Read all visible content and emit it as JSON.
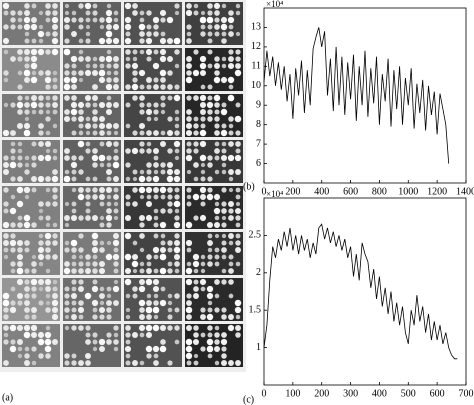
{
  "panel_label": "(a)",
  "chart_data": [
    {
      "type": "line",
      "label": "(b)",
      "y_multiplier": "×10⁴",
      "x": [
        0,
        20,
        40,
        60,
        80,
        100,
        120,
        140,
        160,
        180,
        200,
        220,
        240,
        260,
        280,
        300,
        320,
        340,
        360,
        380,
        400,
        420,
        440,
        460,
        480,
        500,
        520,
        540,
        560,
        580,
        600,
        620,
        640,
        660,
        680,
        700,
        720,
        740,
        760,
        780,
        800,
        820,
        840,
        860,
        880,
        900,
        920,
        940,
        960,
        980,
        1000,
        1020,
        1040,
        1060,
        1080,
        1100,
        1120,
        1140,
        1160,
        1180,
        1200,
        1220,
        1240,
        1260,
        1280
      ],
      "series": [
        {
          "color": "#000000",
          "values": [
            10.2,
            11.8,
            10.5,
            11.5,
            10.0,
            11.2,
            9.8,
            11.0,
            9.2,
            10.6,
            8.3,
            10.9,
            9.5,
            11.3,
            8.6,
            10.8,
            9.0,
            11.9,
            12.5,
            13.0,
            12.0,
            12.8,
            9.5,
            11.4,
            8.7,
            12.0,
            9.0,
            11.5,
            8.5,
            11.2,
            9.3,
            11.6,
            8.2,
            11.0,
            9.0,
            11.8,
            8.4,
            10.9,
            9.1,
            11.5,
            8.0,
            10.6,
            9.2,
            11.4,
            7.9,
            10.8,
            8.8,
            11.0,
            8.0,
            10.4,
            9.0,
            10.9,
            7.8,
            10.1,
            8.6,
            10.3,
            7.7,
            10.0,
            8.5,
            9.7,
            7.5,
            9.6,
            8.8,
            8.0,
            6.0
          ]
        }
      ],
      "xlim": [
        0,
        1400
      ],
      "xticks": [
        0,
        200,
        400,
        600,
        800,
        1000,
        1200,
        1400
      ],
      "ylim": [
        5,
        14
      ],
      "yticks": [
        6,
        7,
        8,
        9,
        10,
        11,
        12,
        13
      ]
    },
    {
      "type": "line",
      "label": "(c)",
      "y_multiplier": "×10⁴",
      "x": [
        0,
        10,
        20,
        30,
        40,
        50,
        60,
        70,
        80,
        90,
        100,
        110,
        120,
        130,
        140,
        150,
        160,
        170,
        180,
        190,
        200,
        210,
        220,
        230,
        240,
        250,
        260,
        270,
        280,
        290,
        300,
        310,
        320,
        330,
        340,
        350,
        360,
        370,
        380,
        390,
        400,
        410,
        420,
        430,
        440,
        450,
        460,
        470,
        480,
        490,
        500,
        510,
        520,
        530,
        540,
        550,
        560,
        570,
        580,
        590,
        600,
        610,
        620,
        630,
        640,
        650,
        660,
        670
      ],
      "series": [
        {
          "color": "#000000",
          "values": [
            1.0,
            1.3,
            1.9,
            2.35,
            2.2,
            2.45,
            2.3,
            2.55,
            2.35,
            2.6,
            2.3,
            2.5,
            2.25,
            2.5,
            2.3,
            2.45,
            2.2,
            2.4,
            2.25,
            2.6,
            2.65,
            2.45,
            2.6,
            2.4,
            2.55,
            2.35,
            2.5,
            2.3,
            2.45,
            2.2,
            2.35,
            1.95,
            2.25,
            1.9,
            2.4,
            2.25,
            2.15,
            1.8,
            2.05,
            1.65,
            1.95,
            1.55,
            1.8,
            1.45,
            1.75,
            1.35,
            1.6,
            1.3,
            1.55,
            1.2,
            1.05,
            1.5,
            1.3,
            1.7,
            1.35,
            1.55,
            1.2,
            1.45,
            1.1,
            1.35,
            1.1,
            1.3,
            1.05,
            1.2,
            1.0,
            0.9,
            0.85,
            0.85
          ]
        }
      ],
      "xlim": [
        0,
        700
      ],
      "xticks": [
        0,
        100,
        200,
        300,
        400,
        500,
        600,
        700
      ],
      "ylim": [
        0.5,
        3
      ],
      "yticks": [
        1,
        1.5,
        2,
        2.5
      ]
    }
  ]
}
